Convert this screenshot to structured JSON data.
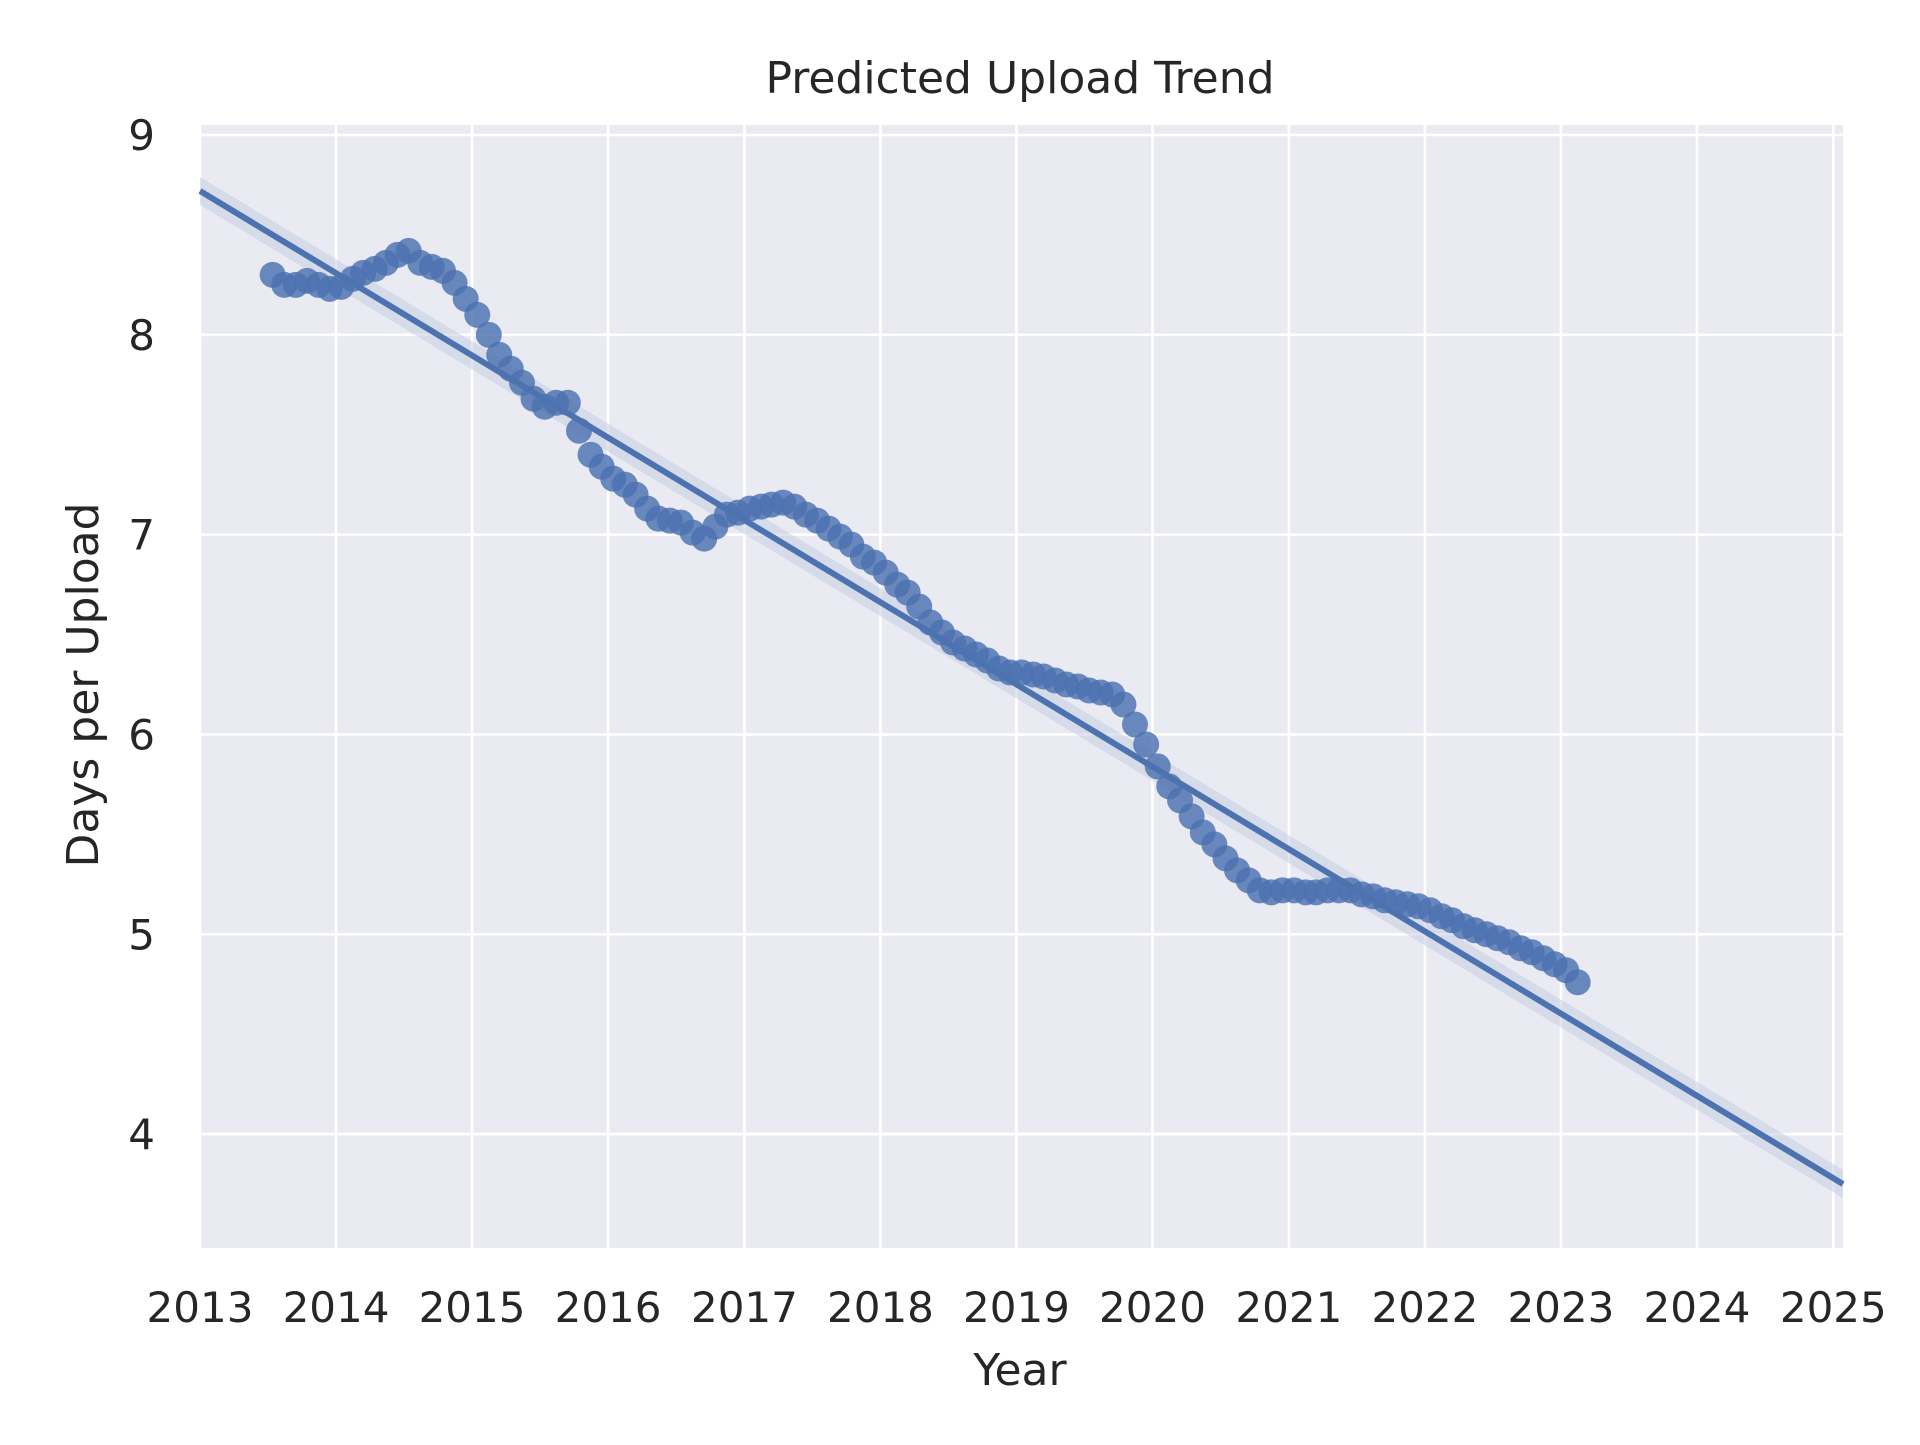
{
  "chart_data": {
    "type": "scatter",
    "title": "Predicted Upload Trend",
    "xlabel": "Year",
    "ylabel": "Days per Upload",
    "xlim": [
      "2013-01-01",
      "2025-01-27"
    ],
    "ylim": [
      3.43,
      9.05
    ],
    "x_ticks": [
      "2013",
      "2014",
      "2015",
      "2016",
      "2017",
      "2018",
      "2019",
      "2020",
      "2021",
      "2022",
      "2023",
      "2024",
      "2025"
    ],
    "y_ticks": [
      4,
      5,
      6,
      7,
      8,
      9
    ],
    "grid": true,
    "legend": "none",
    "colors": {
      "background": "#eaeaf2",
      "grid": "#ffffff",
      "series": "#4c72b0",
      "band": "#c5cde4",
      "text": "#262626"
    },
    "series": [
      {
        "type": "scatter",
        "points": [
          [
            "2013-07-15",
            8.3
          ],
          [
            "2013-08-15",
            8.25
          ],
          [
            "2013-09-15",
            8.25
          ],
          [
            "2013-10-15",
            8.27
          ],
          [
            "2013-11-15",
            8.25
          ],
          [
            "2013-12-15",
            8.23
          ],
          [
            "2014-01-15",
            8.24
          ],
          [
            "2014-02-15",
            8.28
          ],
          [
            "2014-03-15",
            8.31
          ],
          [
            "2014-04-15",
            8.33
          ],
          [
            "2014-05-15",
            8.36
          ],
          [
            "2014-06-15",
            8.4
          ],
          [
            "2014-07-15",
            8.42
          ],
          [
            "2014-08-15",
            8.36
          ],
          [
            "2014-09-15",
            8.34
          ],
          [
            "2014-10-15",
            8.32
          ],
          [
            "2014-11-15",
            8.26
          ],
          [
            "2014-12-15",
            8.18
          ],
          [
            "2015-01-15",
            8.1
          ],
          [
            "2015-02-15",
            8.0
          ],
          [
            "2015-03-15",
            7.9
          ],
          [
            "2015-04-15",
            7.83
          ],
          [
            "2015-05-15",
            7.76
          ],
          [
            "2015-06-15",
            7.68
          ],
          [
            "2015-07-15",
            7.64
          ],
          [
            "2015-08-15",
            7.66
          ],
          [
            "2015-09-15",
            7.66
          ],
          [
            "2015-10-15",
            7.52
          ],
          [
            "2015-11-15",
            7.4
          ],
          [
            "2015-12-15",
            7.34
          ],
          [
            "2016-01-15",
            7.28
          ],
          [
            "2016-02-15",
            7.25
          ],
          [
            "2016-03-15",
            7.2
          ],
          [
            "2016-04-15",
            7.13
          ],
          [
            "2016-05-15",
            7.08
          ],
          [
            "2016-06-15",
            7.07
          ],
          [
            "2016-07-15",
            7.06
          ],
          [
            "2016-08-15",
            7.01
          ],
          [
            "2016-09-15",
            6.98
          ],
          [
            "2016-10-15",
            7.04
          ],
          [
            "2016-11-15",
            7.1
          ],
          [
            "2016-12-15",
            7.11
          ],
          [
            "2017-01-15",
            7.13
          ],
          [
            "2017-02-15",
            7.14
          ],
          [
            "2017-03-15",
            7.15
          ],
          [
            "2017-04-15",
            7.16
          ],
          [
            "2017-05-15",
            7.14
          ],
          [
            "2017-06-15",
            7.1
          ],
          [
            "2017-07-15",
            7.07
          ],
          [
            "2017-08-15",
            7.03
          ],
          [
            "2017-09-15",
            6.99
          ],
          [
            "2017-10-15",
            6.95
          ],
          [
            "2017-11-15",
            6.89
          ],
          [
            "2017-12-15",
            6.86
          ],
          [
            "2018-01-15",
            6.81
          ],
          [
            "2018-02-15",
            6.75
          ],
          [
            "2018-03-15",
            6.71
          ],
          [
            "2018-04-15",
            6.64
          ],
          [
            "2018-05-15",
            6.56
          ],
          [
            "2018-06-15",
            6.51
          ],
          [
            "2018-07-15",
            6.46
          ],
          [
            "2018-08-15",
            6.43
          ],
          [
            "2018-09-15",
            6.4
          ],
          [
            "2018-10-15",
            6.37
          ],
          [
            "2018-11-15",
            6.33
          ],
          [
            "2018-12-15",
            6.31
          ],
          [
            "2019-01-15",
            6.31
          ],
          [
            "2019-02-15",
            6.3
          ],
          [
            "2019-03-15",
            6.29
          ],
          [
            "2019-04-15",
            6.27
          ],
          [
            "2019-05-15",
            6.25
          ],
          [
            "2019-06-15",
            6.24
          ],
          [
            "2019-07-15",
            6.22
          ],
          [
            "2019-08-15",
            6.21
          ],
          [
            "2019-09-15",
            6.2
          ],
          [
            "2019-10-15",
            6.15
          ],
          [
            "2019-11-15",
            6.05
          ],
          [
            "2019-12-15",
            5.95
          ],
          [
            "2020-01-15",
            5.84
          ],
          [
            "2020-02-15",
            5.74
          ],
          [
            "2020-03-15",
            5.67
          ],
          [
            "2020-04-15",
            5.59
          ],
          [
            "2020-05-15",
            5.51
          ],
          [
            "2020-06-15",
            5.45
          ],
          [
            "2020-07-15",
            5.38
          ],
          [
            "2020-08-15",
            5.32
          ],
          [
            "2020-09-15",
            5.27
          ],
          [
            "2020-10-15",
            5.22
          ],
          [
            "2020-11-15",
            5.21
          ],
          [
            "2020-12-15",
            5.22
          ],
          [
            "2021-01-15",
            5.22
          ],
          [
            "2021-02-15",
            5.21
          ],
          [
            "2021-03-15",
            5.21
          ],
          [
            "2021-04-15",
            5.22
          ],
          [
            "2021-05-15",
            5.22
          ],
          [
            "2021-06-15",
            5.22
          ],
          [
            "2021-07-15",
            5.2
          ],
          [
            "2021-08-15",
            5.19
          ],
          [
            "2021-09-15",
            5.17
          ],
          [
            "2021-10-15",
            5.16
          ],
          [
            "2021-11-15",
            5.15
          ],
          [
            "2021-12-15",
            5.14
          ],
          [
            "2022-01-15",
            5.12
          ],
          [
            "2022-02-15",
            5.09
          ],
          [
            "2022-03-15",
            5.07
          ],
          [
            "2022-04-15",
            5.04
          ],
          [
            "2022-05-15",
            5.02
          ],
          [
            "2022-06-15",
            5.0
          ],
          [
            "2022-07-15",
            4.98
          ],
          [
            "2022-08-15",
            4.96
          ],
          [
            "2022-09-15",
            4.93
          ],
          [
            "2022-10-15",
            4.91
          ],
          [
            "2022-11-15",
            4.88
          ],
          [
            "2022-12-15",
            4.85
          ],
          [
            "2023-01-15",
            4.82
          ],
          [
            "2023-02-15",
            4.76
          ]
        ]
      },
      {
        "type": "line",
        "role": "regression",
        "points": [
          [
            "2013-01-01",
            8.72
          ],
          [
            "2025-01-27",
            3.75
          ]
        ]
      }
    ]
  }
}
